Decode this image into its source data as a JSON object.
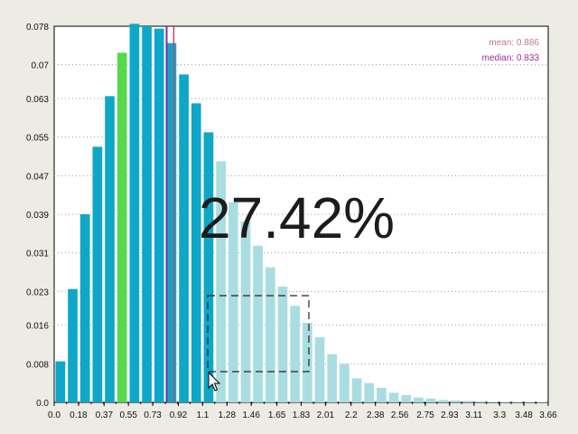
{
  "chart_data": {
    "type": "bar",
    "x_ticks": [
      "0.0",
      "0.18",
      "0.37",
      "0.55",
      "0.73",
      "0.92",
      "1.1",
      "1.28",
      "1.46",
      "1.65",
      "1.83",
      "2.01",
      "2.2",
      "2.38",
      "2.56",
      "2.75",
      "2.93",
      "3.11",
      "3.3",
      "3.48",
      "3.66"
    ],
    "y_ticks": [
      "0.0",
      "0.008",
      "0.016",
      "0.023",
      "0.031",
      "0.039",
      "0.047",
      "0.055",
      "0.063",
      "0.07",
      "0.078"
    ],
    "ylim": [
      0,
      0.078
    ],
    "bin_width": 0.0915,
    "values": [
      0.0085,
      0.0235,
      0.039,
      0.053,
      0.0635,
      0.0725,
      0.0785,
      0.078,
      0.0775,
      0.0745,
      0.068,
      0.062,
      0.056,
      0.05,
      0.0415,
      0.0375,
      0.0325,
      0.028,
      0.024,
      0.02,
      0.0165,
      0.0135,
      0.01,
      0.008,
      0.005,
      0.004,
      0.003,
      0.002,
      0.0015,
      0.001,
      0.0008,
      0.0005,
      0.0004,
      0.0003,
      0.0002,
      0.0001,
      0.0001,
      0.0001,
      0.0001,
      0.0001
    ],
    "threshold": 1.1,
    "highlighted_bin_index": 5,
    "mean": 0.886,
    "median": 0.833,
    "mean_label": "mean: 0.886",
    "median_label": "median: 0.833",
    "percentage_label": "27.42%",
    "grid": true,
    "legend_position": "top-right",
    "colors": {
      "bar_main": "#0ea7c7",
      "bar_light": "#a9dde1",
      "bar_highlight": "#55d94d",
      "mean_line": "#c5486a",
      "median_line": "#8a2a9a",
      "mean_text": "#c07a8a",
      "median_text": "#9a2e9a",
      "grid": "#9a9a9a",
      "axis": "#000000"
    }
  }
}
